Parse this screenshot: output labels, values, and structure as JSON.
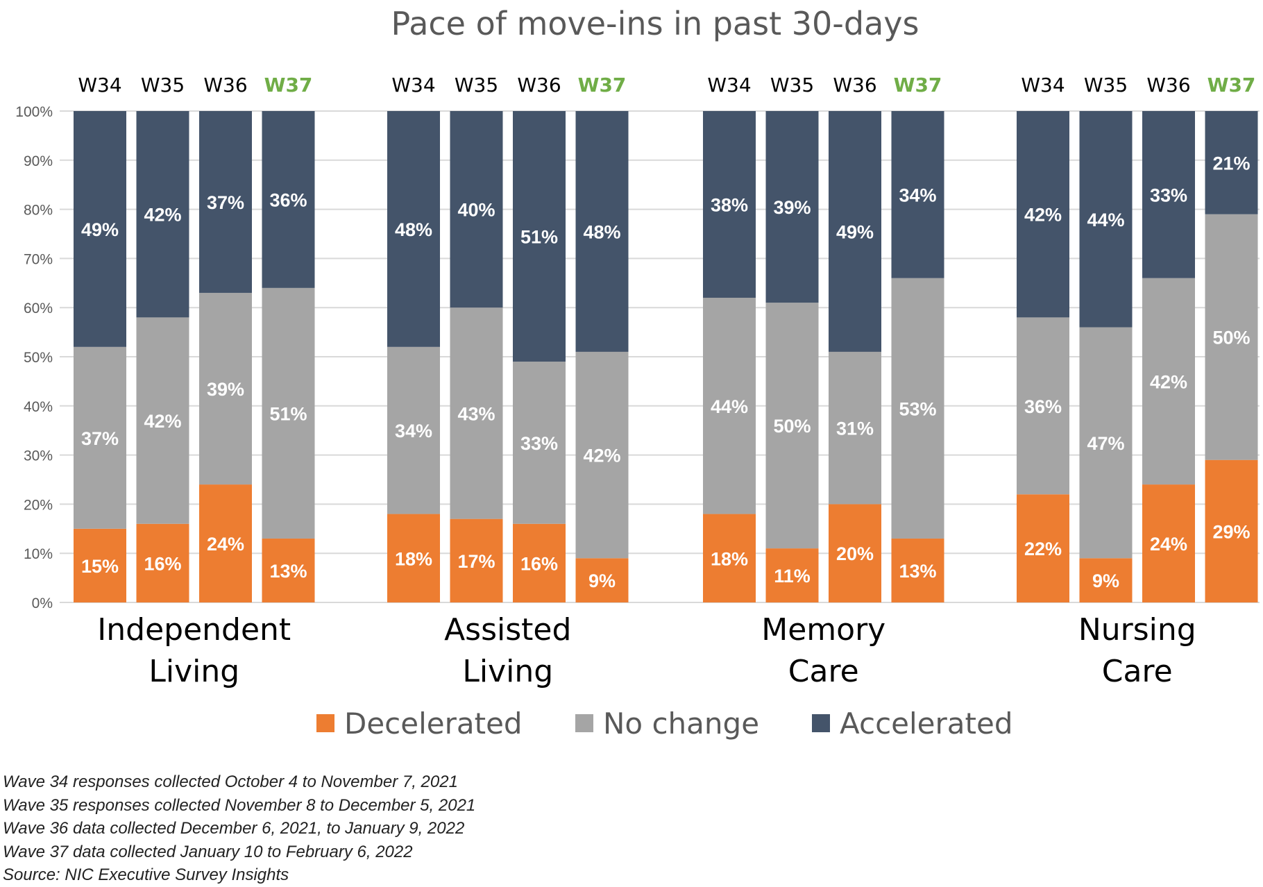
{
  "chart_data": {
    "type": "bar",
    "stacked": true,
    "title": "Pace of move-ins in past 30-days",
    "ylim": [
      0,
      100
    ],
    "y_ticks": [
      "0%",
      "10%",
      "20%",
      "30%",
      "40%",
      "50%",
      "60%",
      "70%",
      "80%",
      "90%",
      "100%"
    ],
    "waves": [
      "W34",
      "W35",
      "W36",
      "W37"
    ],
    "highlight_wave": "W37",
    "legend": [
      "Decelerated",
      "No change",
      "Accelerated"
    ],
    "legend_position": "bottom",
    "colors": {
      "Decelerated": "#ED7D31",
      "No change": "#A5A5A5",
      "Accelerated": "#44546A",
      "highlight_label": "#70AD47",
      "grid": "#D9D9D9"
    },
    "groups": [
      {
        "label_lines": [
          "Independent",
          "Living"
        ],
        "bars": [
          {
            "wave": "W34",
            "Decelerated": 15,
            "No change": 37,
            "Accelerated": 49,
            "labels": [
              "15%",
              "37%",
              "49%"
            ]
          },
          {
            "wave": "W35",
            "Decelerated": 16,
            "No change": 42,
            "Accelerated": 42,
            "labels": [
              "16%",
              "42%",
              "42%"
            ]
          },
          {
            "wave": "W36",
            "Decelerated": 24,
            "No change": 39,
            "Accelerated": 37,
            "labels": [
              "24%",
              "39%",
              "37%"
            ]
          },
          {
            "wave": "W37",
            "Decelerated": 13,
            "No change": 51,
            "Accelerated": 36,
            "labels": [
              "13%",
              "51%",
              "36%"
            ]
          }
        ]
      },
      {
        "label_lines": [
          "Assisted",
          "Living"
        ],
        "bars": [
          {
            "wave": "W34",
            "Decelerated": 18,
            "No change": 34,
            "Accelerated": 48,
            "labels": [
              "18%",
              "34%",
              "48%"
            ]
          },
          {
            "wave": "W35",
            "Decelerated": 17,
            "No change": 43,
            "Accelerated": 40,
            "labels": [
              "17%",
              "43%",
              "40%"
            ]
          },
          {
            "wave": "W36",
            "Decelerated": 16,
            "No change": 33,
            "Accelerated": 51,
            "labels": [
              "16%",
              "33%",
              "51%"
            ]
          },
          {
            "wave": "W37",
            "Decelerated": 9,
            "No change": 42,
            "Accelerated": 48,
            "labels": [
              "9%",
              "42%",
              "48%"
            ]
          }
        ]
      },
      {
        "label_lines": [
          "Memory",
          "Care"
        ],
        "bars": [
          {
            "wave": "W34",
            "Decelerated": 18,
            "No change": 44,
            "Accelerated": 38,
            "labels": [
              "18%",
              "44%",
              "38%"
            ]
          },
          {
            "wave": "W35",
            "Decelerated": 11,
            "No change": 50,
            "Accelerated": 39,
            "labels": [
              "11%",
              "50%",
              "39%"
            ]
          },
          {
            "wave": "W36",
            "Decelerated": 20,
            "No change": 31,
            "Accelerated": 49,
            "labels": [
              "20%",
              "31%",
              "49%"
            ]
          },
          {
            "wave": "W37",
            "Decelerated": 13,
            "No change": 53,
            "Accelerated": 34,
            "labels": [
              "13%",
              "53%",
              "34%"
            ]
          }
        ]
      },
      {
        "label_lines": [
          "Nursing",
          "Care"
        ],
        "bars": [
          {
            "wave": "W34",
            "Decelerated": 22,
            "No change": 36,
            "Accelerated": 42,
            "labels": [
              "22%",
              "36%",
              "42%"
            ]
          },
          {
            "wave": "W35",
            "Decelerated": 9,
            "No change": 47,
            "Accelerated": 44,
            "labels": [
              "9%",
              "47%",
              "44%"
            ]
          },
          {
            "wave": "W36",
            "Decelerated": 24,
            "No change": 42,
            "Accelerated": 33,
            "labels": [
              "24%",
              "42%",
              "33%"
            ]
          },
          {
            "wave": "W37",
            "Decelerated": 29,
            "No change": 50,
            "Accelerated": 21,
            "labels": [
              "29%",
              "50%",
              "21%"
            ]
          }
        ]
      }
    ]
  },
  "notes": [
    "Wave 34 responses collected October 4 to November 7, 2021",
    "Wave 35 responses collected November 8 to December 5, 2021",
    "Wave 36 data collected December 6, 2021, to January 9, 2022",
    "Wave 37 data collected January 10 to February 6, 2022",
    "Source: NIC Executive Survey Insights"
  ]
}
